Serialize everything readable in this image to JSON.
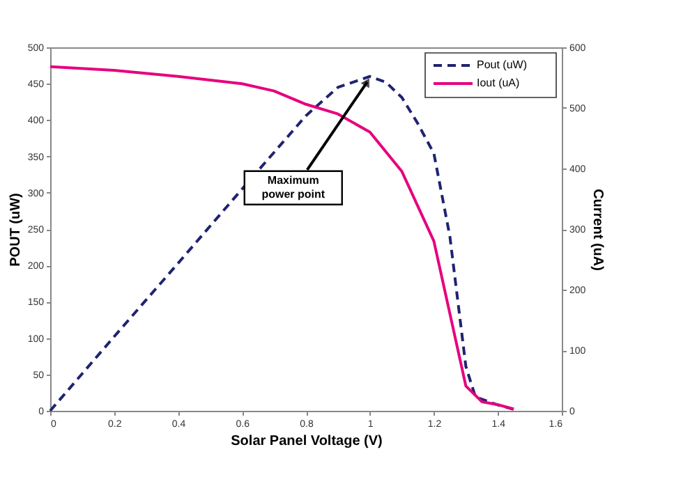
{
  "chart_data": {
    "type": "line",
    "xlabel": "Solar Panel Voltage (V)",
    "ylabel": "POUT (uW)",
    "y2label": "Current (uA)",
    "xlim": [
      0,
      1.6
    ],
    "xticks": [
      0,
      0.2,
      0.4,
      0.6,
      0.8,
      1,
      1.2,
      1.4,
      1.6
    ],
    "ylim": [
      0,
      500
    ],
    "yticks": [
      0,
      50,
      100,
      150,
      200,
      250,
      300,
      350,
      400,
      450,
      500
    ],
    "y2lim": [
      0,
      600
    ],
    "y2ticks": [
      0,
      100,
      200,
      300,
      400,
      500,
      600
    ],
    "grid": false,
    "legend": "top right",
    "marker": "none",
    "series": [
      {
        "name": "Pout (uW)",
        "color": "#1f2370",
        "line_style": "dashed",
        "axis": "y",
        "x": [
          0,
          0.2,
          0.4,
          0.6,
          0.8,
          0.9,
          1.0,
          1.05,
          1.1,
          1.15,
          1.2,
          1.25,
          1.3,
          1.33,
          1.4,
          1.45
        ],
        "values": [
          0,
          102,
          203,
          305,
          406,
          445,
          460,
          452,
          431,
          395,
          354,
          240,
          61,
          19,
          8,
          2
        ]
      },
      {
        "name": "Iout (uA)",
        "color": "#e6007e",
        "line_style": "solid",
        "axis": "y2",
        "x": [
          0,
          0.2,
          0.4,
          0.6,
          0.7,
          0.8,
          0.9,
          1.0,
          1.1,
          1.2,
          1.3,
          1.35,
          1.4,
          1.45
        ],
        "values": [
          568,
          562,
          552,
          540,
          528,
          506,
          490,
          460,
          395,
          280,
          41,
          15,
          10,
          3
        ]
      }
    ],
    "annotations": [
      {
        "text": "Maximum power point",
        "x": 1.0,
        "y": 460
      }
    ]
  }
}
